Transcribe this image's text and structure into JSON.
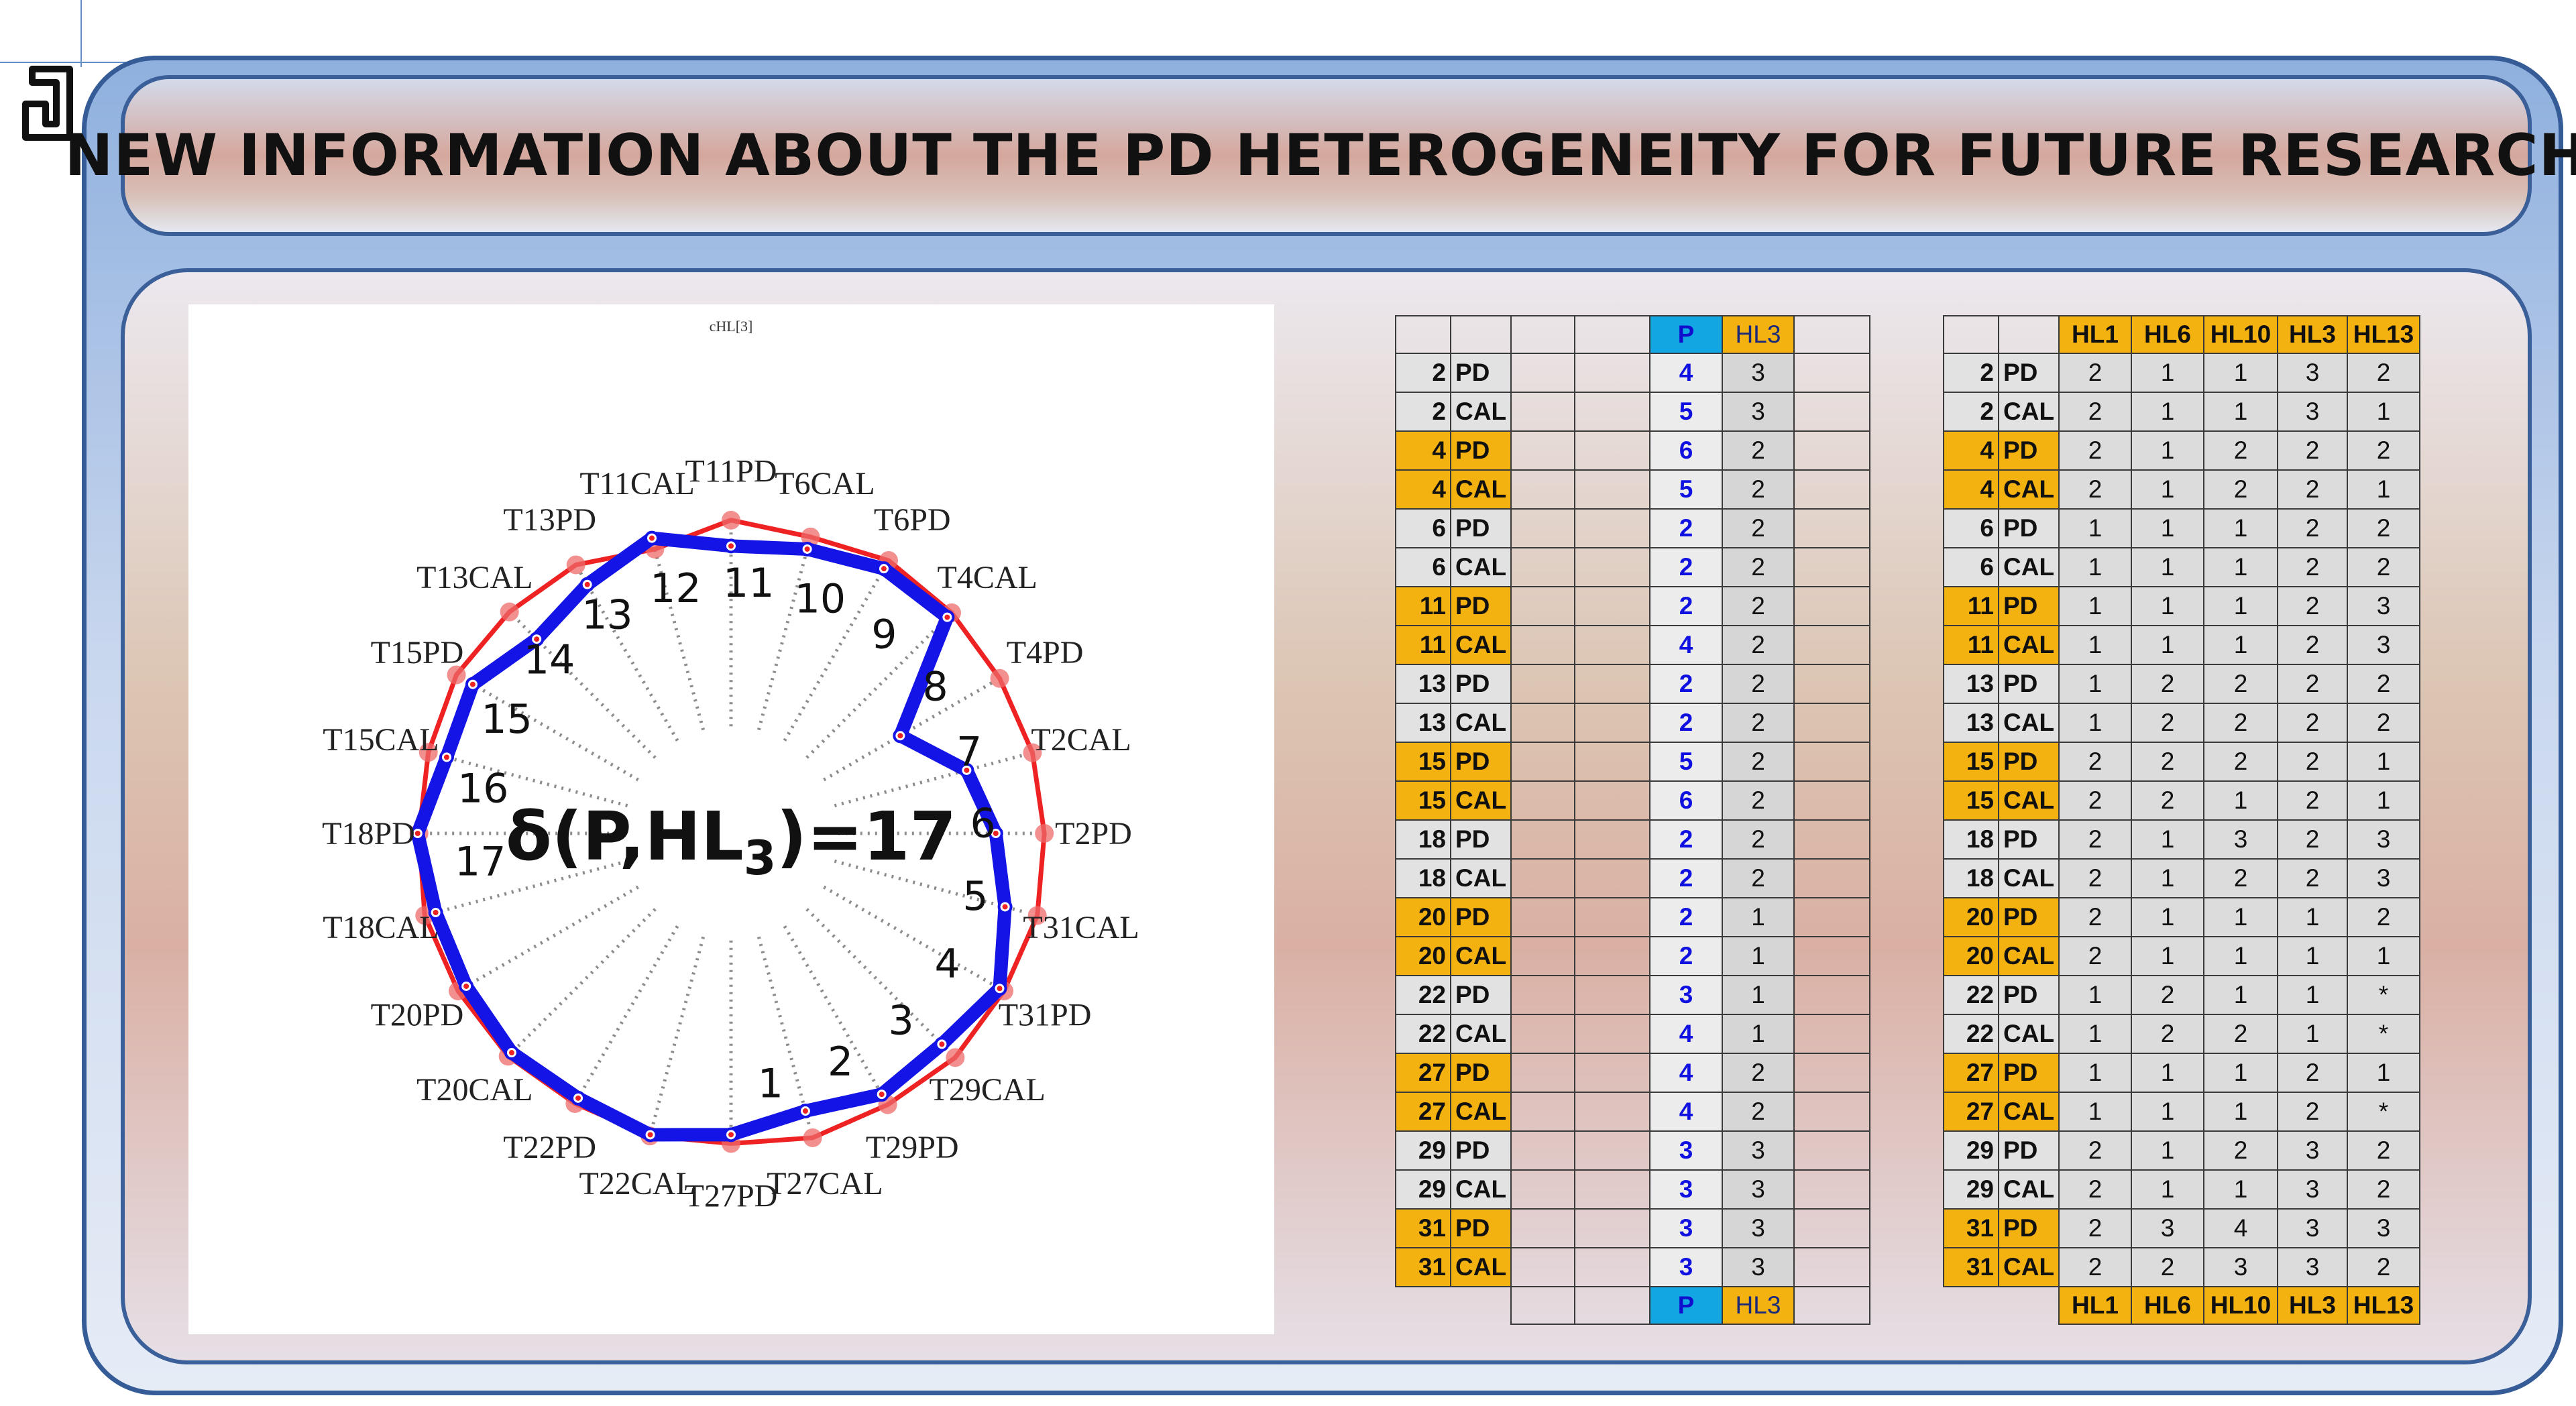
{
  "title": "NEW INFORMATION ABOUT THE PD HETEROGENEITY FOR FUTURE RESEARCH",
  "colors": {
    "frame_border": "#365c97",
    "blue_polygon": "#1414e6",
    "red_polygon": "#ee2222",
    "orange": "#f3b20f",
    "p_header": "#12a6e3"
  },
  "radar": {
    "top_label": "cHL[3]",
    "center_text_prefix": "δ(P,HL",
    "center_text_sub": "3",
    "center_text_suffix": ")=17",
    "axis_labels": [
      "T11PD",
      "T6CAL",
      "T6PD",
      "T4CAL",
      "T4PD",
      "T2CAL",
      "T2PD",
      "T31CAL",
      "T31PD",
      "T29CAL",
      "T29PD",
      "T27CAL",
      "T27PD",
      "T22CAL",
      "T22PD",
      "T20CAL",
      "T20PD",
      "T18CAL",
      "T18PD",
      "T15CAL",
      "T15PD",
      "T13CAL",
      "T13PD",
      "T11CAL"
    ],
    "blue_values": [
      4.56,
      4.67,
      4.85,
      4.85,
      3.1,
      3.87,
      4.2,
      4.5,
      4.92,
      4.73,
      4.78,
      4.56,
      4.78,
      4.95,
      4.85,
      4.92,
      4.85,
      4.85,
      4.97,
      4.67,
      4.73,
      4.36,
      4.56,
      4.85
    ],
    "red_values": [
      4.97,
      4.87,
      5.0,
      4.95,
      4.92,
      4.95,
      4.97,
      5.03,
      5.0,
      5.03,
      4.97,
      5.0,
      4.92,
      4.97,
      4.95,
      5.0,
      5.0,
      5.03,
      4.95,
      4.97,
      5.03,
      4.97,
      4.92,
      4.67
    ],
    "difference_labels": [
      "1",
      "2",
      "3",
      "4",
      "5",
      "6",
      "7",
      "8",
      "9",
      "10",
      "11",
      "12",
      "13",
      "14",
      "15",
      "16",
      "17"
    ]
  },
  "table1": {
    "header": [
      "",
      "",
      "",
      "",
      "P",
      "HL3"
    ],
    "footer": [
      "P",
      "HL3"
    ],
    "rows": [
      {
        "n": "2",
        "g": "PD",
        "p": "4",
        "hl": "3",
        "style": "grey"
      },
      {
        "n": "2",
        "g": "CAL",
        "p": "5",
        "hl": "3",
        "style": "grey"
      },
      {
        "n": "4",
        "g": "PD",
        "p": "6",
        "hl": "2",
        "style": "orange"
      },
      {
        "n": "4",
        "g": "CAL",
        "p": "5",
        "hl": "2",
        "style": "orange"
      },
      {
        "n": "6",
        "g": "PD",
        "p": "2",
        "hl": "2",
        "style": "grey"
      },
      {
        "n": "6",
        "g": "CAL",
        "p": "2",
        "hl": "2",
        "style": "grey"
      },
      {
        "n": "11",
        "g": "PD",
        "p": "2",
        "hl": "2",
        "style": "orange"
      },
      {
        "n": "11",
        "g": "CAL",
        "p": "4",
        "hl": "2",
        "style": "orange"
      },
      {
        "n": "13",
        "g": "PD",
        "p": "2",
        "hl": "2",
        "style": "grey"
      },
      {
        "n": "13",
        "g": "CAL",
        "p": "2",
        "hl": "2",
        "style": "grey"
      },
      {
        "n": "15",
        "g": "PD",
        "p": "5",
        "hl": "2",
        "style": "orange"
      },
      {
        "n": "15",
        "g": "CAL",
        "p": "6",
        "hl": "2",
        "style": "orange"
      },
      {
        "n": "18",
        "g": "PD",
        "p": "2",
        "hl": "2",
        "style": "grey"
      },
      {
        "n": "18",
        "g": "CAL",
        "p": "2",
        "hl": "2",
        "style": "grey"
      },
      {
        "n": "20",
        "g": "PD",
        "p": "2",
        "hl": "1",
        "style": "orange"
      },
      {
        "n": "20",
        "g": "CAL",
        "p": "2",
        "hl": "1",
        "style": "orange"
      },
      {
        "n": "22",
        "g": "PD",
        "p": "3",
        "hl": "1",
        "style": "grey"
      },
      {
        "n": "22",
        "g": "CAL",
        "p": "4",
        "hl": "1",
        "style": "grey"
      },
      {
        "n": "27",
        "g": "PD",
        "p": "4",
        "hl": "2",
        "style": "orange"
      },
      {
        "n": "27",
        "g": "CAL",
        "p": "4",
        "hl": "2",
        "style": "orange"
      },
      {
        "n": "29",
        "g": "PD",
        "p": "3",
        "hl": "3",
        "style": "grey"
      },
      {
        "n": "29",
        "g": "CAL",
        "p": "3",
        "hl": "3",
        "style": "grey"
      },
      {
        "n": "31",
        "g": "PD",
        "p": "3",
        "hl": "3",
        "style": "orange"
      },
      {
        "n": "31",
        "g": "CAL",
        "p": "3",
        "hl": "3",
        "style": "orange"
      }
    ]
  },
  "table2": {
    "header": [
      "HL1",
      "HL6",
      "HL10",
      "HL3",
      "HL13"
    ],
    "rows": [
      {
        "n": "2",
        "g": "PD",
        "v": [
          "2",
          "1",
          "1",
          "3",
          "2"
        ],
        "style": "grey"
      },
      {
        "n": "2",
        "g": "CAL",
        "v": [
          "2",
          "1",
          "1",
          "3",
          "1"
        ],
        "style": "grey"
      },
      {
        "n": "4",
        "g": "PD",
        "v": [
          "2",
          "1",
          "2",
          "2",
          "2"
        ],
        "style": "orange"
      },
      {
        "n": "4",
        "g": "CAL",
        "v": [
          "2",
          "1",
          "2",
          "2",
          "1"
        ],
        "style": "orange"
      },
      {
        "n": "6",
        "g": "PD",
        "v": [
          "1",
          "1",
          "1",
          "2",
          "2"
        ],
        "style": "grey"
      },
      {
        "n": "6",
        "g": "CAL",
        "v": [
          "1",
          "1",
          "1",
          "2",
          "2"
        ],
        "style": "grey"
      },
      {
        "n": "11",
        "g": "PD",
        "v": [
          "1",
          "1",
          "1",
          "2",
          "3"
        ],
        "style": "orange"
      },
      {
        "n": "11",
        "g": "CAL",
        "v": [
          "1",
          "1",
          "1",
          "2",
          "3"
        ],
        "style": "orange"
      },
      {
        "n": "13",
        "g": "PD",
        "v": [
          "1",
          "2",
          "2",
          "2",
          "2"
        ],
        "style": "grey"
      },
      {
        "n": "13",
        "g": "CAL",
        "v": [
          "1",
          "2",
          "2",
          "2",
          "2"
        ],
        "style": "grey"
      },
      {
        "n": "15",
        "g": "PD",
        "v": [
          "2",
          "2",
          "2",
          "2",
          "1"
        ],
        "style": "orange"
      },
      {
        "n": "15",
        "g": "CAL",
        "v": [
          "2",
          "2",
          "1",
          "2",
          "1"
        ],
        "style": "orange"
      },
      {
        "n": "18",
        "g": "PD",
        "v": [
          "2",
          "1",
          "3",
          "2",
          "3"
        ],
        "style": "grey"
      },
      {
        "n": "18",
        "g": "CAL",
        "v": [
          "2",
          "1",
          "2",
          "2",
          "3"
        ],
        "style": "grey"
      },
      {
        "n": "20",
        "g": "PD",
        "v": [
          "2",
          "1",
          "1",
          "1",
          "2"
        ],
        "style": "orange"
      },
      {
        "n": "20",
        "g": "CAL",
        "v": [
          "2",
          "1",
          "1",
          "1",
          "1"
        ],
        "style": "orange"
      },
      {
        "n": "22",
        "g": "PD",
        "v": [
          "1",
          "2",
          "1",
          "1",
          "*"
        ],
        "style": "grey"
      },
      {
        "n": "22",
        "g": "CAL",
        "v": [
          "1",
          "2",
          "2",
          "1",
          "*"
        ],
        "style": "grey"
      },
      {
        "n": "27",
        "g": "PD",
        "v": [
          "1",
          "1",
          "1",
          "2",
          "1"
        ],
        "style": "orange"
      },
      {
        "n": "27",
        "g": "CAL",
        "v": [
          "1",
          "1",
          "1",
          "2",
          "*"
        ],
        "style": "orange"
      },
      {
        "n": "29",
        "g": "PD",
        "v": [
          "2",
          "1",
          "2",
          "3",
          "2"
        ],
        "style": "grey"
      },
      {
        "n": "29",
        "g": "CAL",
        "v": [
          "2",
          "1",
          "1",
          "3",
          "2"
        ],
        "style": "grey"
      },
      {
        "n": "31",
        "g": "PD",
        "v": [
          "2",
          "3",
          "4",
          "3",
          "3"
        ],
        "style": "orange"
      },
      {
        "n": "31",
        "g": "CAL",
        "v": [
          "2",
          "2",
          "3",
          "3",
          "2"
        ],
        "style": "orange"
      }
    ]
  }
}
